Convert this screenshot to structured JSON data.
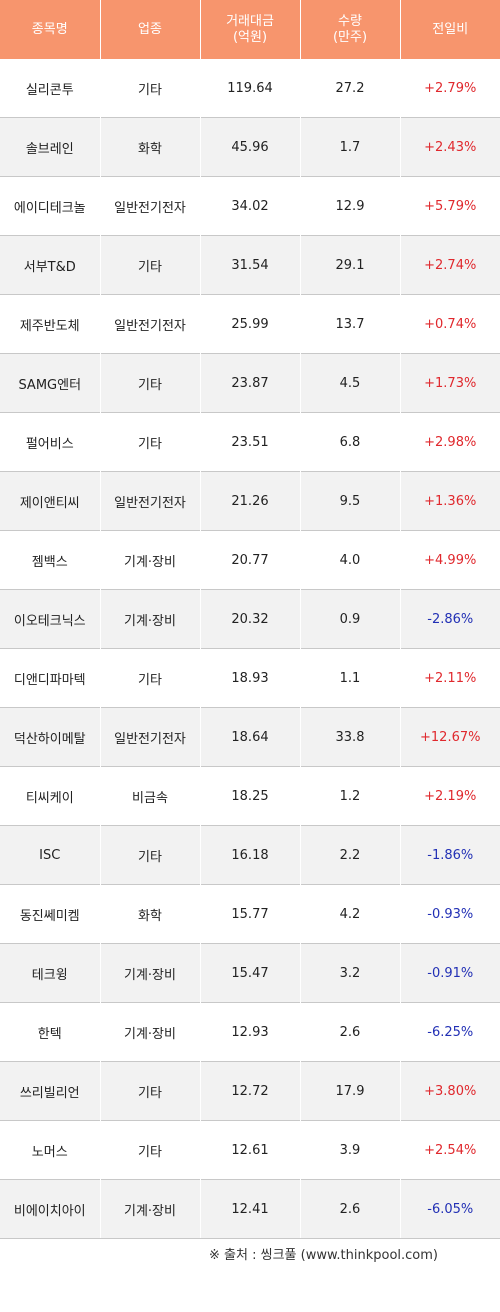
{
  "headers": [
    "종목명",
    "업종",
    "거래대금\n(억원)",
    "수량\n(만주)",
    "전일비"
  ],
  "rows": [
    {
      "name": "실리콘투",
      "sector": "기타",
      "amount": "119.64",
      "volume": "27.2",
      "change": "+2.79%",
      "dir": "up"
    },
    {
      "name": "솔브레인",
      "sector": "화학",
      "amount": "45.96",
      "volume": "1.7",
      "change": "+2.43%",
      "dir": "up"
    },
    {
      "name": "에이디테크놀",
      "sector": "일반전기전자",
      "amount": "34.02",
      "volume": "12.9",
      "change": "+5.79%",
      "dir": "up"
    },
    {
      "name": "서부T&D",
      "sector": "기타",
      "amount": "31.54",
      "volume": "29.1",
      "change": "+2.74%",
      "dir": "up"
    },
    {
      "name": "제주반도체",
      "sector": "일반전기전자",
      "amount": "25.99",
      "volume": "13.7",
      "change": "+0.74%",
      "dir": "up"
    },
    {
      "name": "SAMG엔터",
      "sector": "기타",
      "amount": "23.87",
      "volume": "4.5",
      "change": "+1.73%",
      "dir": "up"
    },
    {
      "name": "펄어비스",
      "sector": "기타",
      "amount": "23.51",
      "volume": "6.8",
      "change": "+2.98%",
      "dir": "up"
    },
    {
      "name": "제이앤티씨",
      "sector": "일반전기전자",
      "amount": "21.26",
      "volume": "9.5",
      "change": "+1.36%",
      "dir": "up"
    },
    {
      "name": "젬백스",
      "sector": "기계·장비",
      "amount": "20.77",
      "volume": "4.0",
      "change": "+4.99%",
      "dir": "up"
    },
    {
      "name": "이오테크닉스",
      "sector": "기계·장비",
      "amount": "20.32",
      "volume": "0.9",
      "change": "-2.86%",
      "dir": "down"
    },
    {
      "name": "디앤디파마텍",
      "sector": "기타",
      "amount": "18.93",
      "volume": "1.1",
      "change": "+2.11%",
      "dir": "up"
    },
    {
      "name": "덕산하이메탈",
      "sector": "일반전기전자",
      "amount": "18.64",
      "volume": "33.8",
      "change": "+12.67%",
      "dir": "up"
    },
    {
      "name": "티씨케이",
      "sector": "비금속",
      "amount": "18.25",
      "volume": "1.2",
      "change": "+2.19%",
      "dir": "up"
    },
    {
      "name": "ISC",
      "sector": "기타",
      "amount": "16.18",
      "volume": "2.2",
      "change": "-1.86%",
      "dir": "down"
    },
    {
      "name": "동진쎄미켐",
      "sector": "화학",
      "amount": "15.77",
      "volume": "4.2",
      "change": "-0.93%",
      "dir": "down"
    },
    {
      "name": "테크윙",
      "sector": "기계·장비",
      "amount": "15.47",
      "volume": "3.2",
      "change": "-0.91%",
      "dir": "down"
    },
    {
      "name": "한텍",
      "sector": "기계·장비",
      "amount": "12.93",
      "volume": "2.6",
      "change": "-6.25%",
      "dir": "down"
    },
    {
      "name": "쓰리빌리언",
      "sector": "기타",
      "amount": "12.72",
      "volume": "17.9",
      "change": "+3.80%",
      "dir": "up"
    },
    {
      "name": "노머스",
      "sector": "기타",
      "amount": "12.61",
      "volume": "3.9",
      "change": "+2.54%",
      "dir": "up"
    },
    {
      "name": "비에이치아이",
      "sector": "기계·장비",
      "amount": "12.41",
      "volume": "2.6",
      "change": "-6.05%",
      "dir": "down"
    }
  ],
  "source": "※ 출처 : 씽크풀 (www.thinkpool.com)",
  "colors": {
    "header_bg": "#f7956d",
    "up": "#e0282d",
    "down": "#2230b5"
  }
}
